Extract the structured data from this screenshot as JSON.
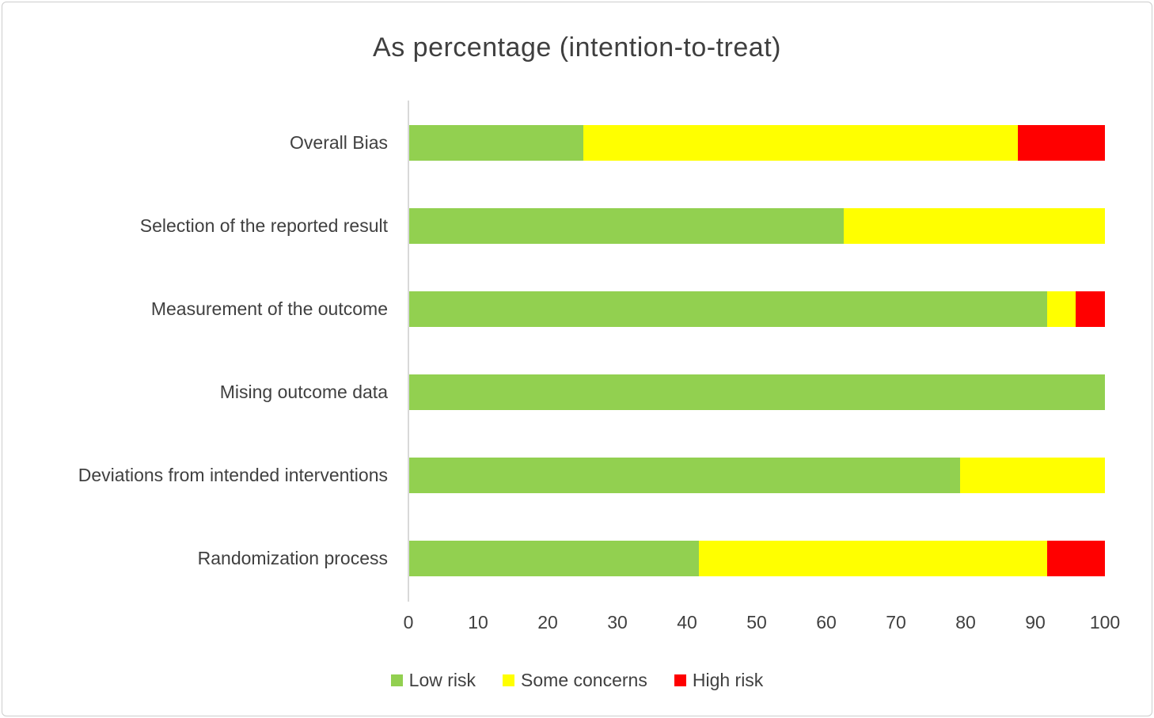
{
  "chart_data": {
    "type": "bar",
    "orientation": "horizontal",
    "stacked": true,
    "title": "As percentage (intention-to-treat)",
    "unit": "percent",
    "categories": [
      "Overall Bias",
      "Selection of the reported result",
      "Measurement of the outcome",
      "Mising outcome data",
      "Deviations from intended interventions",
      "Randomization process"
    ],
    "series": [
      {
        "name": "Low risk",
        "color": "#92d050",
        "values": [
          25.0,
          62.5,
          91.66,
          100.0,
          79.17,
          41.67
        ]
      },
      {
        "name": "Some concerns",
        "color": "#ffff00",
        "values": [
          62.5,
          37.5,
          4.17,
          0.0,
          20.83,
          50.0
        ]
      },
      {
        "name": "High risk",
        "color": "#ff0000",
        "values": [
          12.5,
          0.0,
          4.17,
          0.0,
          0.0,
          8.33
        ]
      }
    ],
    "x_axis": {
      "min": 0,
      "max": 100,
      "tick_interval": 10,
      "tick_labels": [
        "0",
        "10",
        "20",
        "30",
        "40",
        "50",
        "60",
        "70",
        "80",
        "90",
        "100"
      ]
    },
    "grid": false,
    "legend_position": "bottom",
    "legend": [
      {
        "label": "Low risk",
        "color": "#92d050"
      },
      {
        "label": "Some concerns",
        "color": "#ffff00"
      },
      {
        "label": "High risk",
        "color": "#ff0000"
      }
    ],
    "axis_line_color": "#d9d9d9",
    "text_color": "#404040"
  }
}
